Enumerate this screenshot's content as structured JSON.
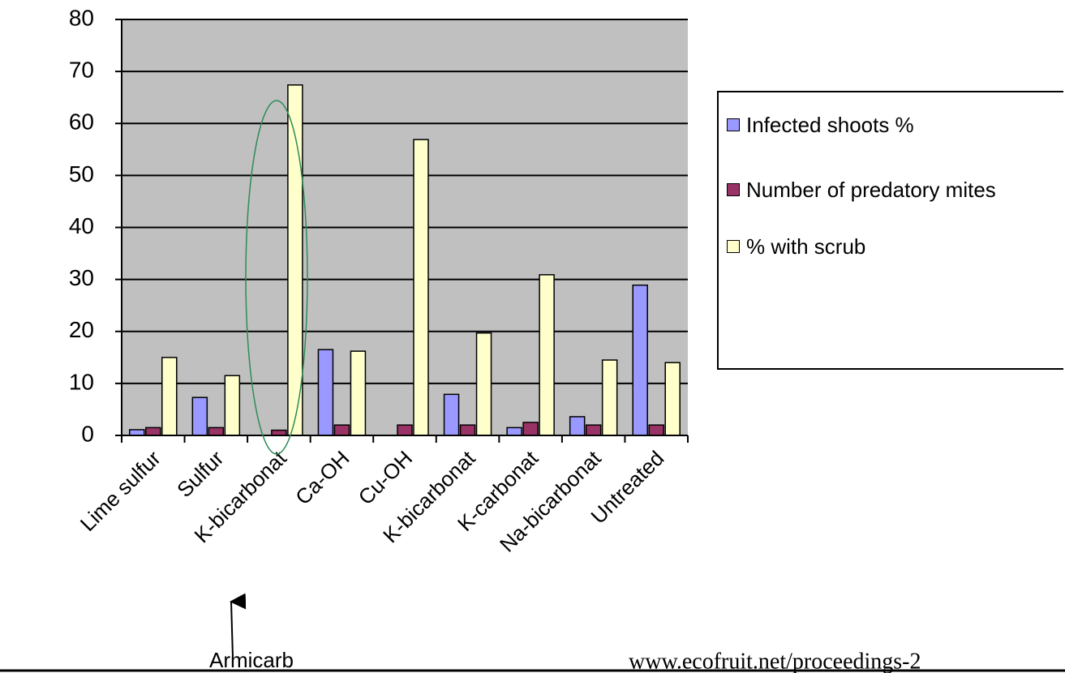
{
  "chart_data": {
    "type": "bar",
    "categories": [
      "Lime sulfur",
      "Sulfur",
      "K-bicarbonat",
      "Ca-OH",
      "Cu-OH",
      "K-bicarbonat",
      "K-carbonat",
      "Na-bicarbonat",
      "Untreated"
    ],
    "series": [
      {
        "name": "Infected shoots %",
        "color": "#9999ff",
        "values": [
          1.1,
          7.3,
          0,
          16.5,
          0,
          7.9,
          1.5,
          3.6,
          28.9
        ]
      },
      {
        "name": "Number of predatory mites",
        "color": "#993366",
        "values": [
          1.5,
          1.5,
          1,
          2,
          2,
          2,
          2.5,
          2,
          2
        ]
      },
      {
        "name": "% with scrub",
        "color": "#ffffcc",
        "values": [
          15,
          11.5,
          67.4,
          16.2,
          56.9,
          19.7,
          30.9,
          14.5,
          14
        ]
      }
    ],
    "ylim": [
      0,
      80
    ],
    "yticks": [
      0,
      10,
      20,
      30,
      40,
      50,
      60,
      70,
      80
    ],
    "grid": true,
    "annotations": [
      "Armicarb",
      "www.ecofruit.net/proceedings-2"
    ]
  }
}
